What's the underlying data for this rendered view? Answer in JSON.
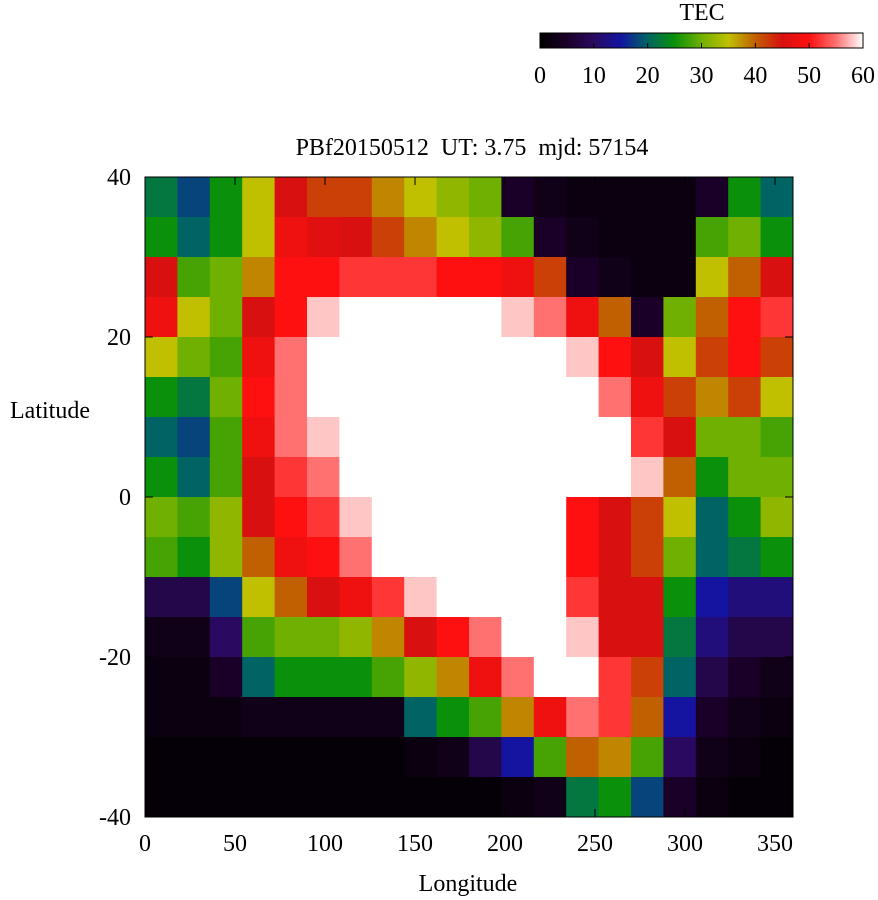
{
  "chart_data": {
    "type": "heatmap",
    "title": "PBf20150512  UT: 3.75  mjd: 57154",
    "xlabel": "Longitude",
    "ylabel": "Latitude",
    "zlabel": "TEC",
    "xlim": [
      0,
      360
    ],
    "ylim": [
      -40,
      40
    ],
    "zlim": [
      0,
      60
    ],
    "xticks": [
      0,
      50,
      100,
      150,
      200,
      250,
      300,
      350
    ],
    "yticks": [
      -40,
      -20,
      0,
      20,
      40
    ],
    "zticks": [
      0,
      10,
      20,
      30,
      40,
      50,
      60
    ],
    "colormap": [
      "#000000",
      "#1a0028",
      "#2a0a60",
      "#1414a0",
      "#006464",
      "#0a900a",
      "#70b000",
      "#c0c000",
      "#c06000",
      "#d81010",
      "#ff1010",
      "#ff7070",
      "#ffffff"
    ],
    "xbins": [
      0,
      18,
      36,
      54,
      72,
      90,
      108,
      126,
      144,
      162,
      180,
      198,
      216,
      234,
      252,
      270,
      288,
      306,
      324,
      342,
      360
    ],
    "ybins": [
      40,
      35,
      30,
      25,
      20,
      15,
      10,
      5,
      0,
      -5,
      -10,
      -15,
      -20,
      -25,
      -30,
      -35,
      -40
    ],
    "z": [
      [
        22,
        18,
        25,
        35,
        45,
        42,
        42,
        38,
        35,
        32,
        30,
        5,
        3,
        2,
        2,
        2,
        2,
        5,
        25,
        20
      ],
      [
        25,
        20,
        25,
        35,
        48,
        46,
        45,
        42,
        38,
        35,
        32,
        28,
        5,
        3,
        2,
        2,
        2,
        28,
        30,
        25
      ],
      [
        45,
        28,
        30,
        38,
        50,
        50,
        52,
        52,
        52,
        50,
        50,
        48,
        42,
        5,
        3,
        2,
        2,
        35,
        40,
        45
      ],
      [
        48,
        35,
        30,
        45,
        50,
        58,
        60,
        60,
        60,
        60,
        60,
        58,
        55,
        48,
        40,
        5,
        30,
        40,
        50,
        52
      ],
      [
        35,
        30,
        28,
        48,
        55,
        60,
        60,
        60,
        60,
        60,
        60,
        60,
        60,
        58,
        50,
        45,
        35,
        42,
        50,
        42
      ],
      [
        25,
        22,
        30,
        50,
        55,
        60,
        60,
        60,
        60,
        60,
        60,
        60,
        60,
        60,
        55,
        48,
        42,
        38,
        42,
        35
      ],
      [
        20,
        18,
        28,
        48,
        55,
        58,
        60,
        60,
        60,
        60,
        60,
        60,
        60,
        60,
        60,
        52,
        45,
        30,
        30,
        28
      ],
      [
        25,
        20,
        28,
        45,
        52,
        55,
        60,
        60,
        60,
        60,
        60,
        60,
        60,
        60,
        60,
        58,
        40,
        25,
        30,
        30
      ],
      [
        30,
        28,
        32,
        45,
        50,
        52,
        58,
        60,
        60,
        60,
        60,
        60,
        60,
        50,
        45,
        42,
        35,
        20,
        25,
        32
      ],
      [
        28,
        25,
        32,
        40,
        48,
        50,
        55,
        60,
        60,
        60,
        60,
        60,
        60,
        50,
        45,
        42,
        30,
        20,
        22,
        25
      ],
      [
        8,
        8,
        18,
        35,
        40,
        45,
        48,
        52,
        58,
        60,
        60,
        60,
        60,
        52,
        45,
        45,
        25,
        15,
        12,
        12
      ],
      [
        3,
        3,
        10,
        28,
        30,
        30,
        32,
        38,
        45,
        50,
        55,
        60,
        60,
        58,
        45,
        45,
        22,
        12,
        8,
        8
      ],
      [
        2,
        2,
        5,
        20,
        25,
        25,
        25,
        28,
        32,
        38,
        48,
        55,
        60,
        60,
        52,
        42,
        20,
        8,
        5,
        3
      ],
      [
        2,
        2,
        2,
        3,
        3,
        3,
        3,
        3,
        20,
        25,
        28,
        38,
        48,
        55,
        52,
        40,
        15,
        5,
        3,
        2
      ],
      [
        1,
        1,
        1,
        1,
        1,
        1,
        1,
        1,
        2,
        3,
        8,
        15,
        28,
        40,
        38,
        28,
        10,
        3,
        2,
        1
      ],
      [
        1,
        1,
        1,
        1,
        1,
        1,
        1,
        1,
        1,
        1,
        1,
        2,
        3,
        22,
        25,
        18,
        5,
        2,
        1,
        1
      ]
    ]
  }
}
